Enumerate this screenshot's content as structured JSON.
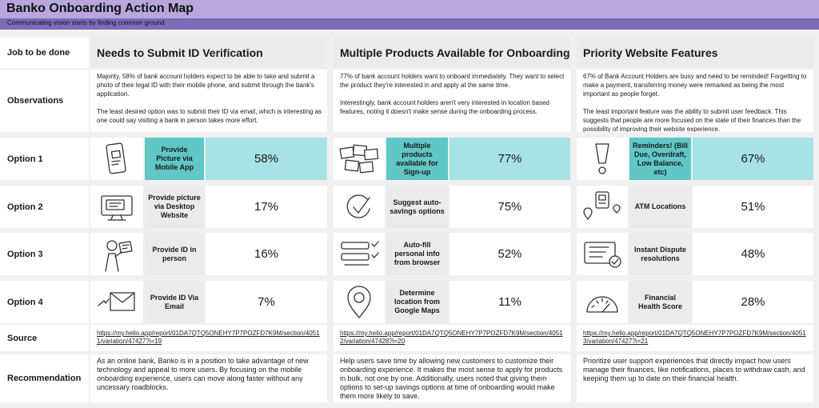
{
  "header": {
    "title": "Banko Onboarding Action Map",
    "subtitle": "Communicating vision starts by finding common ground."
  },
  "row_labels": {
    "job": "Job to be done",
    "observations": "Observations",
    "option1": "Option 1",
    "option2": "Option 2",
    "option3": "Option 3",
    "option4": "Option 4",
    "source": "Source",
    "recommendation": "Recommendation"
  },
  "columns": [
    {
      "job": "Needs to Submit ID Verification",
      "observations": [
        "Majority, 58% of bank account holders expect to be able to take and submit a photo of their legal ID with their mobile phone, and submit through the bank's application.",
        "The least desired option was to submit their ID via email, which is interesting as one could say visiting a bank in person takes more effort."
      ],
      "options": [
        {
          "label": "Provide Picture via Mobile App",
          "percent": "58%",
          "icon": "phone-photo-icon",
          "highlighted": true
        },
        {
          "label": "Provide picture via Desktop Website",
          "percent": "17%",
          "icon": "desktop-monitor-icon",
          "highlighted": false
        },
        {
          "label": "Provide ID in person",
          "percent": "16%",
          "icon": "person-holding-id-icon",
          "highlighted": false
        },
        {
          "label": "Provide ID Via Email",
          "percent": "7%",
          "icon": "envelope-icon",
          "highlighted": false
        }
      ],
      "source": "https://my.helio.app/report/01DA7QTQ5ONEHY7P7POZFD7K9M/section/40511/variation/47427?i=19",
      "recommendation": "As an online bank, Banko is in a position to take advantage of new technology and appeal to more users. By focusing on the mobile onboarding experience, users can move along faster without any uncessary roadblocks."
    },
    {
      "job": "Multiple Products Available for Onboarding",
      "observations": [
        "77% of bank account holders want to onboard immediately. They want to select the product they're interested in and apply at the same time.",
        "Interestingly, bank account holders aren't very interested in location based features, noting it doesn't make sense during the onboarding process."
      ],
      "options": [
        {
          "label": "Multiple products available for Sign-up",
          "percent": "77%",
          "icon": "stacked-cards-icon",
          "highlighted": true
        },
        {
          "label": "Suggest auto-savings options",
          "percent": "75%",
          "icon": "check-circle-icon",
          "highlighted": false
        },
        {
          "label": "Auto-fill personal info from browser",
          "percent": "52%",
          "icon": "form-fields-icon",
          "highlighted": false
        },
        {
          "label": "Determine location from Google Maps",
          "percent": "11%",
          "icon": "map-pin-icon",
          "highlighted": false
        }
      ],
      "source": "https://my.helio.app/report/01DA7QTQ5ONEHY7P7POZFD7K9M/section/40512/variation/47428?i=20",
      "recommendation": "Help users save time by allowing new customers to customize their onboarding experience. It makes the most sense to apply for products in bulk, not one by one. Additionally, users noted that giving them options to set-up savings options at time of onboarding would make them more likely to save."
    },
    {
      "job": "Priority Website Features",
      "observations": [
        "67% of Bank Account Holders are busy and need to be reminded! Forgetting to make a payment, transferring money were remarked as being the most important as people forget.",
        "The least important feature was the ability to submit user feedback. This suggests that people are more focused on the state of their finances than the possibility of improving their website experience."
      ],
      "options": [
        {
          "label": "Reminders! (Bill Due, Overdraft, Low Balance, etc)",
          "percent": "67%",
          "icon": "exclamation-icon",
          "highlighted": true
        },
        {
          "label": "ATM Locations",
          "percent": "51%",
          "icon": "atm-location-icon",
          "highlighted": false
        },
        {
          "label": "Instant Dispute resolutions",
          "percent": "48%",
          "icon": "document-check-icon",
          "highlighted": false
        },
        {
          "label": "Financial Health Score",
          "percent": "28%",
          "icon": "gauge-icon",
          "highlighted": false
        }
      ],
      "source": "https://my.helio.app/report/01DA7QTQ5ONEHY7P7POZFD7K9M/section/40513/variation/47427?i=21",
      "recommendation": "Prioritize user support experiences that directly impact how users manage their finances, like notifications, places to withdraw cash, and keeping them up to date on their financial health."
    }
  ]
}
